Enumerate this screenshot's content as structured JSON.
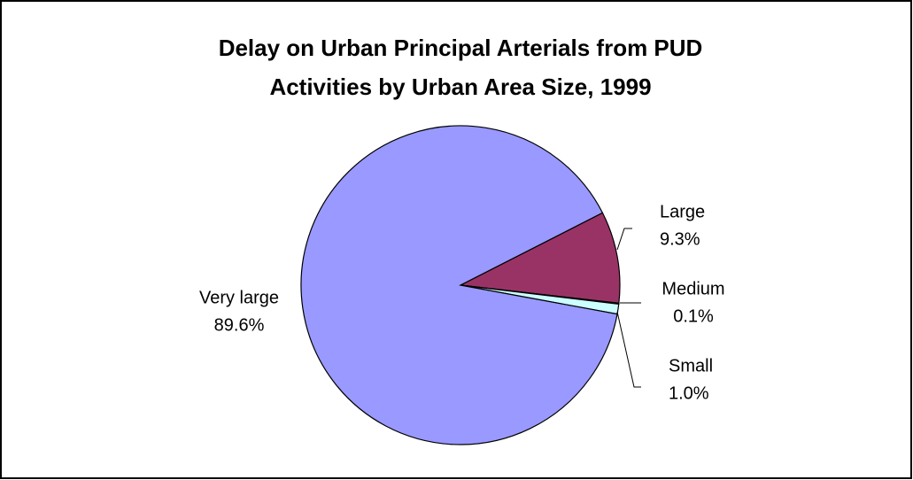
{
  "chart_data": {
    "type": "pie",
    "title": [
      "Delay on Urban Principal Arterials from PUD",
      "Activities by Urban Area Size, 1999"
    ],
    "categories": [
      "Large",
      "Medium",
      "Small",
      "Very large"
    ],
    "values": [
      9.3,
      0.1,
      1.0,
      89.6
    ],
    "value_labels": [
      "9.3%",
      "0.1%",
      "1.0%",
      "89.6%"
    ],
    "colors": [
      "#993366",
      "#ffffcc",
      "#ccffff",
      "#9999ff"
    ]
  }
}
